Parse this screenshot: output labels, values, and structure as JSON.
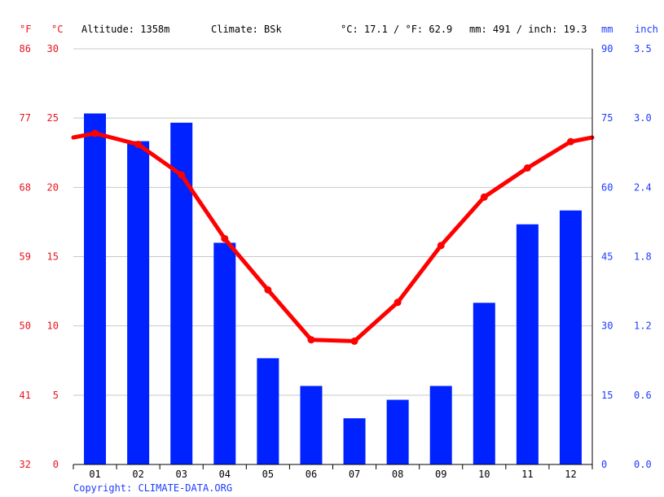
{
  "header": {
    "altitude": "Altitude: 1358m",
    "climate": "Climate: BSk",
    "temp_avg": "°C: 17.1 / °F: 62.9",
    "precip_total": "mm: 491 / inch: 19.3"
  },
  "copyright": "Copyright: CLIMATE-DATA.ORG",
  "colors": {
    "bar": "#0022ff",
    "line": "#ff0000",
    "temp_axis": "#e8141e",
    "precip_axis": "#1e3cff",
    "grid": "#c8c8c8"
  },
  "chart_data": {
    "type": "bar+line",
    "categories": [
      "01",
      "02",
      "03",
      "04",
      "05",
      "06",
      "07",
      "08",
      "09",
      "10",
      "11",
      "12"
    ],
    "axes": {
      "left_outer": {
        "unit": "°F",
        "ticks": [
          "86",
          "77",
          "68",
          "59",
          "50",
          "41",
          "32"
        ]
      },
      "left_inner": {
        "unit": "°C",
        "ticks": [
          "30",
          "25",
          "20",
          "15",
          "10",
          "5",
          "0"
        ],
        "range": [
          0,
          30
        ]
      },
      "right_inner": {
        "unit": "mm",
        "ticks": [
          "90",
          "75",
          "60",
          "45",
          "30",
          "15",
          "0"
        ],
        "range": [
          0,
          90
        ]
      },
      "right_outer": {
        "unit": "inch",
        "ticks": [
          "3.5",
          "3.0",
          "2.4",
          "1.8",
          "1.2",
          "0.6",
          "0.0"
        ]
      }
    },
    "grid": true,
    "series": [
      {
        "kind": "bar",
        "axis": "mm",
        "values": [
          76,
          70,
          74,
          48,
          23,
          17,
          10,
          14,
          17,
          35,
          52,
          55
        ]
      },
      {
        "kind": "line",
        "axis": "°C",
        "values": [
          23.9,
          23.1,
          20.9,
          16.3,
          12.6,
          9.0,
          8.9,
          11.7,
          15.8,
          19.3,
          21.4,
          23.3
        ]
      }
    ]
  }
}
